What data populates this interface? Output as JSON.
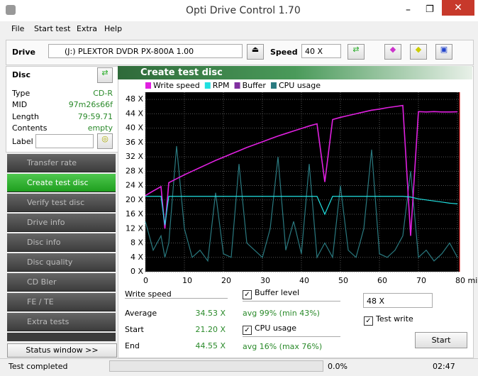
{
  "window": {
    "title": "Opti Drive Control 1.70"
  },
  "menu": [
    "File",
    "Start test",
    "Extra",
    "Help"
  ],
  "toolbar": {
    "drive_label": "Drive",
    "drive": "(J:)  PLEXTOR DVDR   PX-800A 1.00",
    "speed_label": "Speed",
    "speed": "40 X"
  },
  "disc": {
    "header": "Disc",
    "rows": [
      [
        "Type",
        "CD-R"
      ],
      [
        "MID",
        "97m26s66f"
      ],
      [
        "Length",
        "79:59.71"
      ],
      [
        "Contents",
        "empty"
      ]
    ],
    "label": "Label"
  },
  "nav": [
    "Transfer rate",
    "Create test disc",
    "Verify test disc",
    "Drive info",
    "Disc info",
    "Disc quality",
    "CD Bler",
    "FE / TE",
    "Extra tests"
  ],
  "status_window": "Status window >>",
  "panel": {
    "title": "Create test disc"
  },
  "chart_data": {
    "type": "line",
    "x": [
      0,
      2,
      4,
      5,
      6,
      8,
      10,
      12,
      14,
      16,
      18,
      20,
      22,
      24,
      26,
      28,
      30,
      32,
      34,
      36,
      38,
      40,
      42,
      44,
      46,
      48,
      50,
      52,
      54,
      56,
      58,
      60,
      62,
      64,
      66,
      68,
      70,
      72,
      74,
      76,
      78,
      80
    ],
    "series": [
      {
        "name": "Write speed",
        "color": "#e020e0",
        "values": [
          21.2,
          22.5,
          23.7,
          12,
          24.8,
          25.9,
          27,
          28,
          29,
          30,
          31,
          31.9,
          32.8,
          33.7,
          34.6,
          35.4,
          36.2,
          37,
          37.8,
          38.5,
          39.2,
          39.9,
          40.6,
          41.2,
          25,
          42.4,
          43,
          43.5,
          44,
          44.5,
          45,
          45.3,
          45.7,
          46,
          46.3,
          10,
          44.6,
          44.5,
          44.6,
          44.5,
          44.5,
          44.55
        ]
      },
      {
        "name": "RPM",
        "color": "#20e0e0",
        "values": [
          21,
          21,
          21,
          13,
          21,
          21,
          21,
          21,
          21,
          21,
          21,
          21,
          21,
          21,
          21,
          21,
          21,
          21,
          21,
          21,
          21,
          21,
          21,
          21,
          16,
          21,
          21,
          21,
          21,
          21,
          21,
          21,
          21,
          21,
          21,
          20.8,
          20.3,
          20,
          19.7,
          19.4,
          19.1,
          18.9
        ]
      },
      {
        "name": "Buffer",
        "color": "#8030a0",
        "values": [
          null,
          null,
          null,
          null,
          null,
          null,
          null,
          null,
          null,
          null,
          null,
          null,
          null,
          null,
          null,
          null,
          null,
          null,
          null,
          null,
          null,
          null,
          null,
          null,
          null,
          null,
          null,
          null,
          null,
          null,
          null,
          null,
          null,
          null,
          null,
          null,
          null,
          null,
          null,
          null,
          null,
          null
        ]
      },
      {
        "name": "CPU usage",
        "color": "#2a7a80",
        "values": [
          14,
          6,
          10,
          4,
          8,
          35,
          12,
          4,
          6,
          3,
          22,
          5,
          4,
          30,
          8,
          6,
          4,
          12,
          32,
          6,
          14,
          5,
          30,
          4,
          8,
          4,
          24,
          6,
          4,
          12,
          34,
          5,
          4,
          6,
          10,
          28,
          4,
          6,
          3,
          5,
          8,
          4
        ]
      }
    ],
    "xlim": [
      0,
      80
    ],
    "ylim": [
      0,
      50
    ],
    "xticks": [
      0,
      10,
      20,
      30,
      40,
      50,
      60,
      70,
      {
        "value": 80,
        "label": "80 min"
      }
    ],
    "yticks": [
      {
        "value": 0,
        "label": "0 X"
      },
      {
        "value": 4,
        "label": "4 X"
      },
      {
        "value": 8,
        "label": "8 X"
      },
      {
        "value": 12,
        "label": "12 X"
      },
      {
        "value": 16,
        "label": "16 X"
      },
      {
        "value": 20,
        "label": "20 X"
      },
      {
        "value": 24,
        "label": "24 X"
      },
      {
        "value": 28,
        "label": "28 X"
      },
      {
        "value": 32,
        "label": "32 X"
      },
      {
        "value": 36,
        "label": "36 X"
      },
      {
        "value": 40,
        "label": "40 X"
      },
      {
        "value": 44,
        "label": "44 X"
      },
      {
        "value": 48,
        "label": "48 X"
      }
    ],
    "grid": true
  },
  "stats": {
    "write_speed": "Write speed",
    "rows": [
      [
        "Average",
        "34.53 X"
      ],
      [
        "Start",
        "21.20 X"
      ],
      [
        "End",
        "44.55 X"
      ]
    ],
    "buffer": "Buffer level",
    "buffer_avg": "avg 99% (min 43%)",
    "cpu": "CPU usage",
    "cpu_avg": "avg 16% (max 76%)",
    "speed": "48 X",
    "test_write": "Test write",
    "start": "Start"
  },
  "status": {
    "text": "Test completed",
    "progress": "0.0%",
    "time": "02:47"
  }
}
